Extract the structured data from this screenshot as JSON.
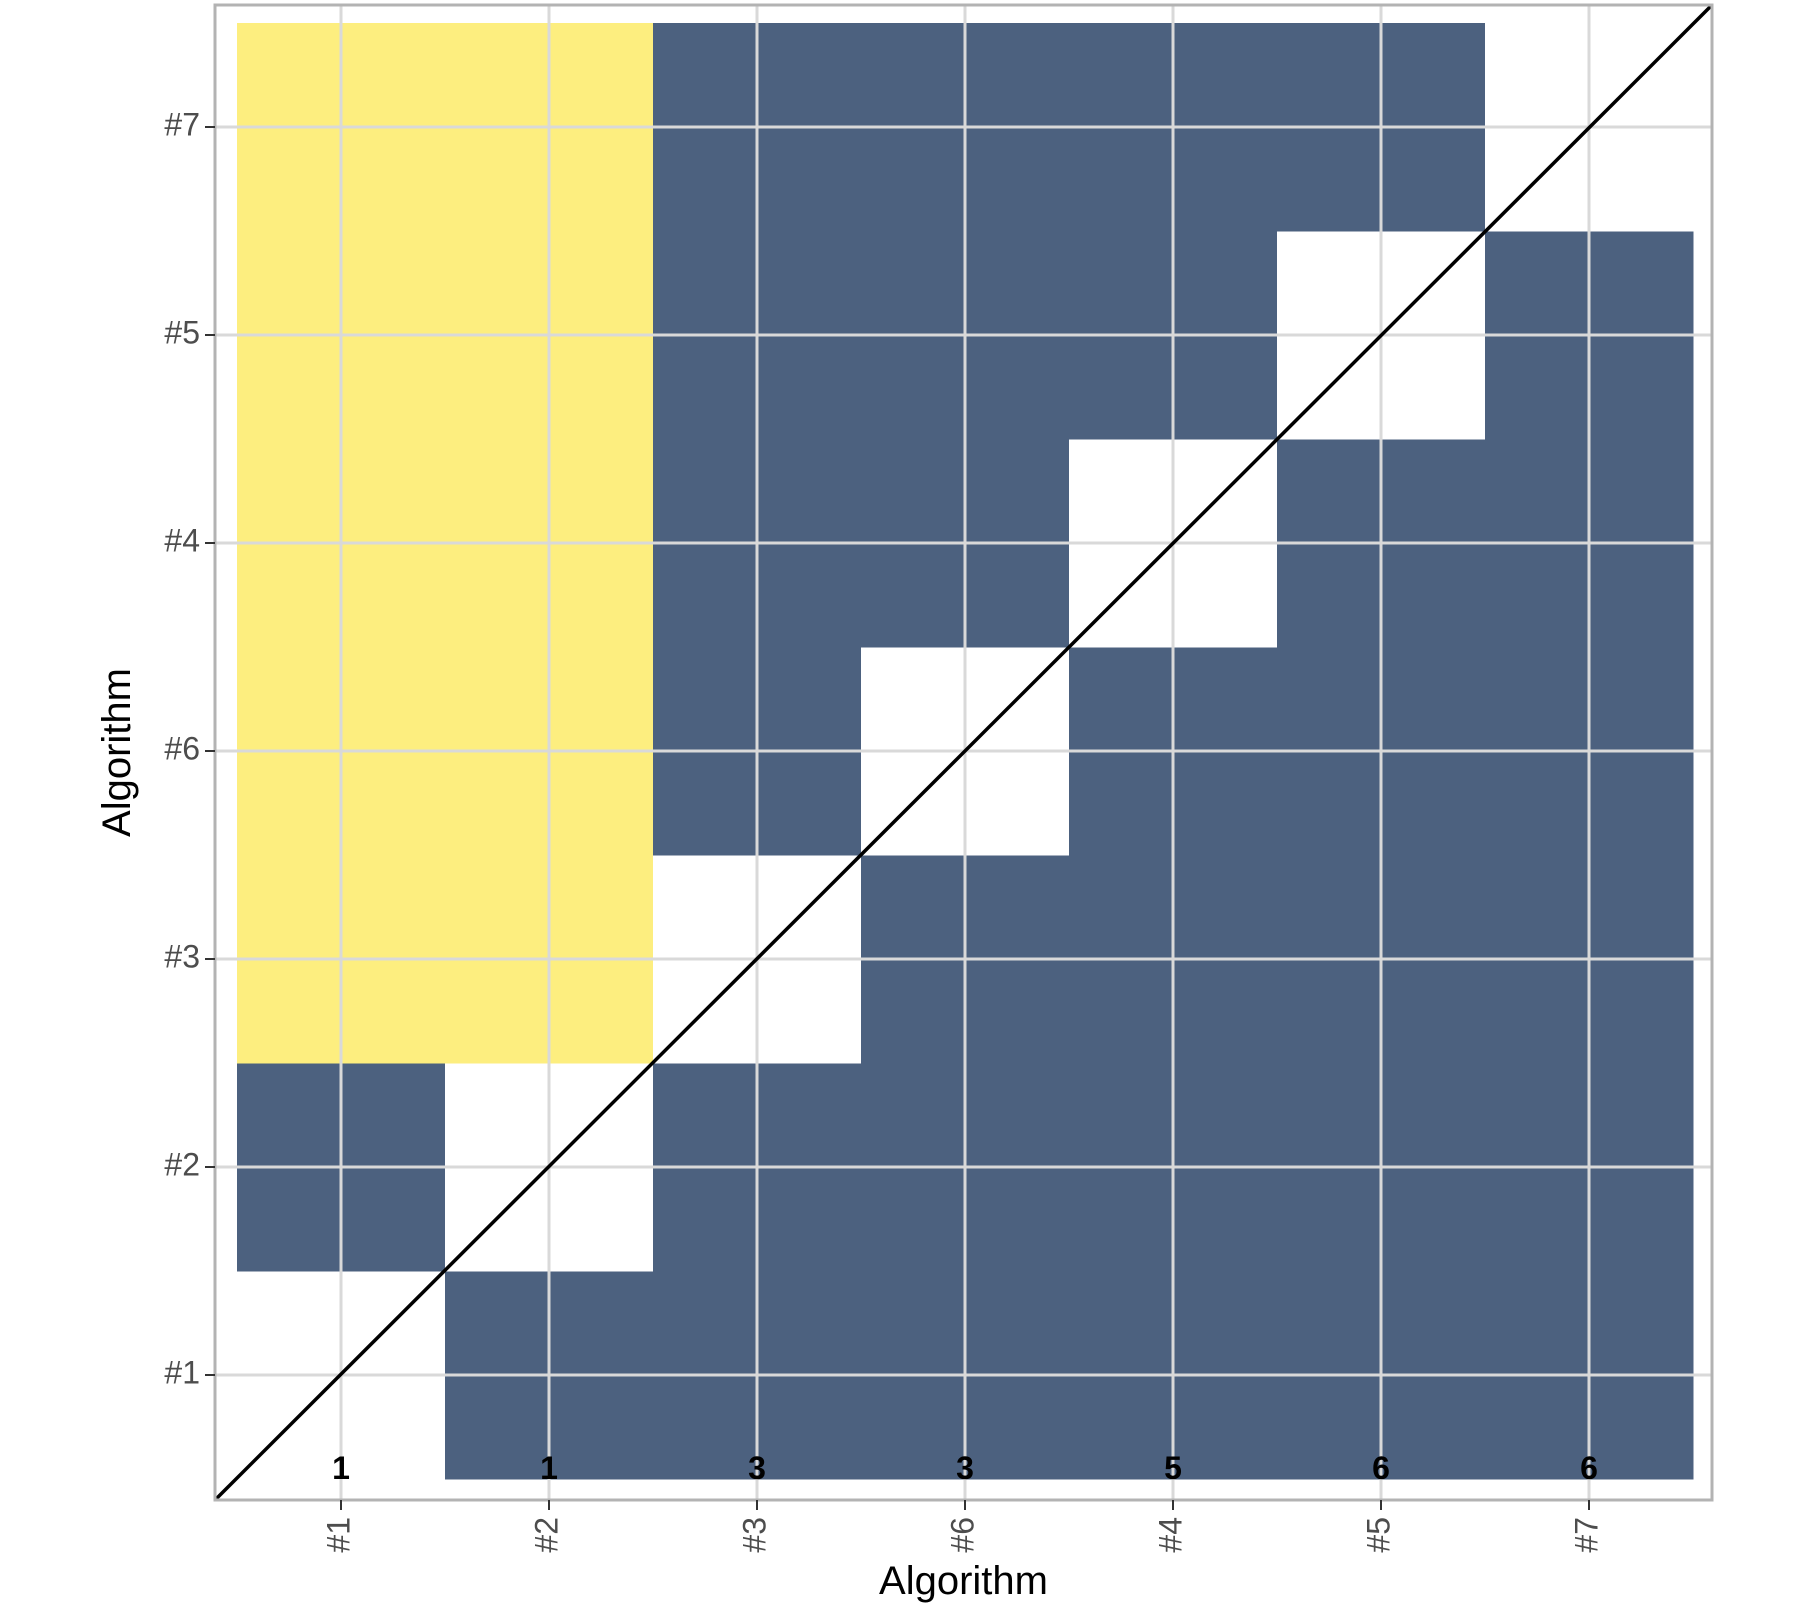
{
  "chart_data": {
    "type": "heatmap",
    "xlabel": "Algorithm",
    "ylabel": "Algorithm",
    "x_categories": [
      "#1",
      "#2",
      "#3",
      "#6",
      "#4",
      "#5",
      "#7"
    ],
    "y_categories": [
      "#1",
      "#2",
      "#3",
      "#6",
      "#4",
      "#5",
      "#7"
    ],
    "cell_categories": [
      "none",
      "better",
      "worse"
    ],
    "colors": {
      "none": "#ffffff",
      "better": "#4c617f",
      "worse": "#fdee7f",
      "grid": "#d9d9d9",
      "frame": "#b3b3b3",
      "diagonal": "#000000"
    },
    "cells": [
      [
        "none",
        "better",
        "better",
        "better",
        "better",
        "better",
        "better"
      ],
      [
        "better",
        "none",
        "better",
        "better",
        "better",
        "better",
        "better"
      ],
      [
        "worse",
        "worse",
        "none",
        "better",
        "better",
        "better",
        "better"
      ],
      [
        "worse",
        "worse",
        "better",
        "none",
        "better",
        "better",
        "better"
      ],
      [
        "worse",
        "worse",
        "better",
        "better",
        "none",
        "better",
        "better"
      ],
      [
        "worse",
        "worse",
        "better",
        "better",
        "better",
        "none",
        "better"
      ],
      [
        "worse",
        "worse",
        "better",
        "better",
        "better",
        "better",
        "none"
      ]
    ],
    "rank_labels": [
      "1",
      "1",
      "3",
      "3",
      "5",
      "6",
      "6"
    ],
    "diagonal_line": true,
    "grid": true,
    "legend": "none"
  }
}
